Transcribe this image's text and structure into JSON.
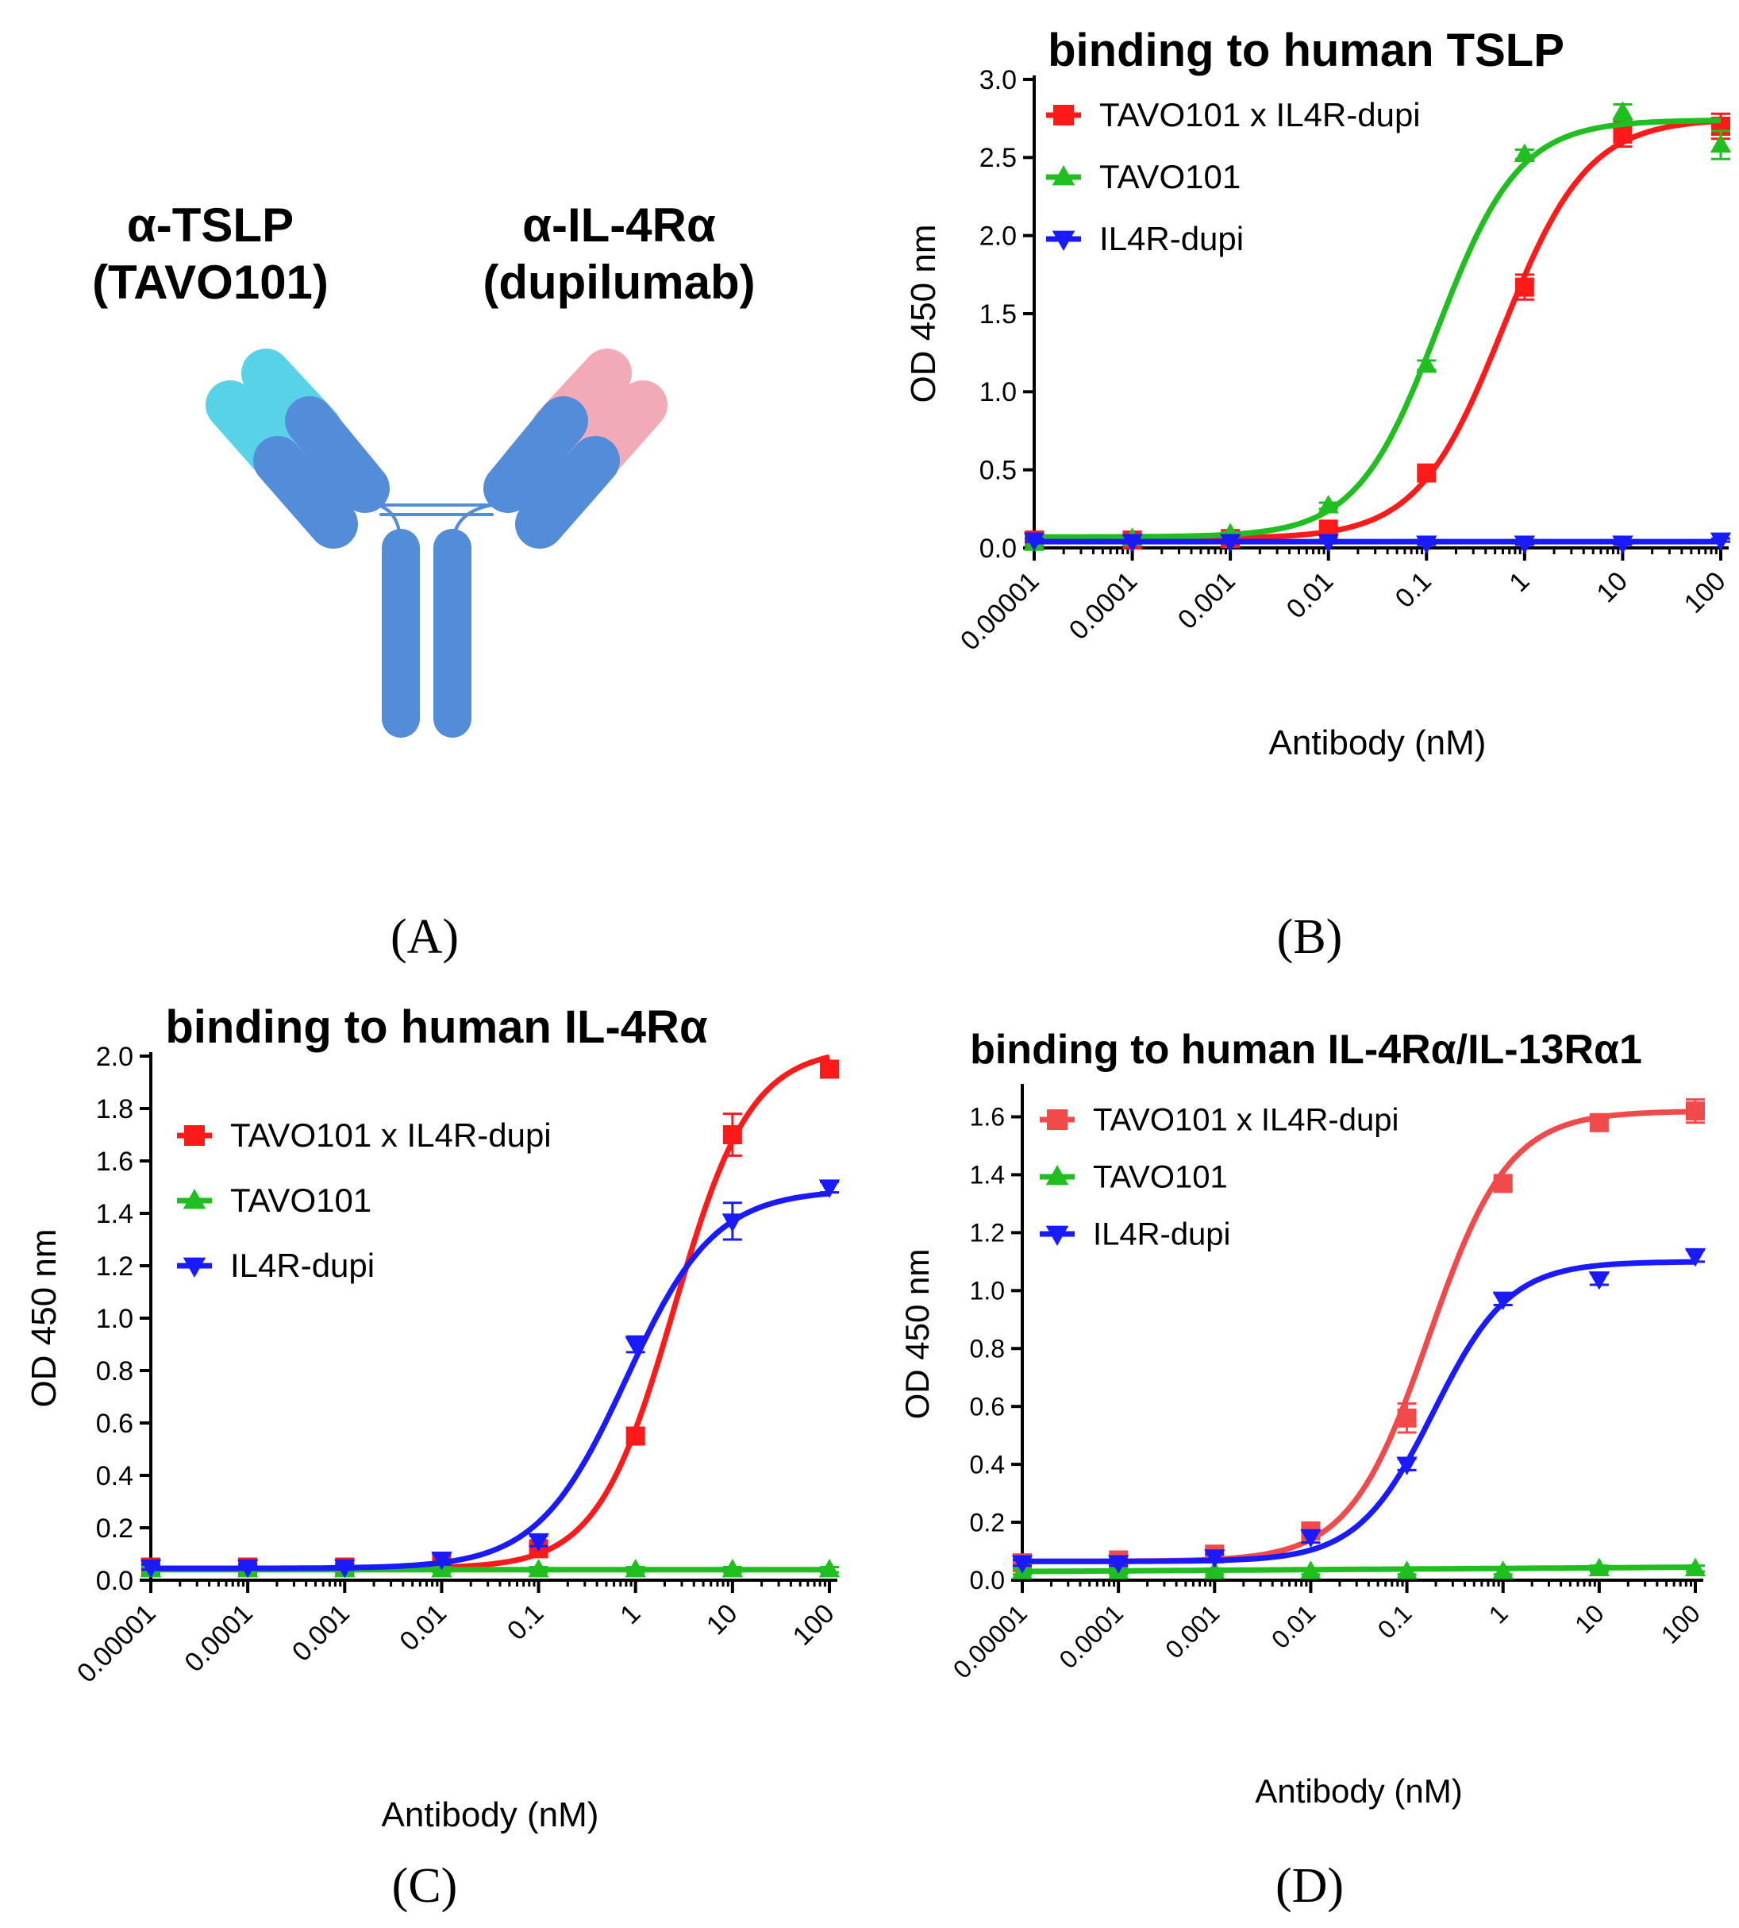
{
  "panel_letters": {
    "a": "(A)",
    "b": "(B)",
    "c": "(C)",
    "d": "(D)"
  },
  "schematic": {
    "left_label_1": "α-TSLP",
    "left_label_2": "(TAVO101)",
    "right_label_1": "α-IL-4Rα",
    "right_label_2": "(dupilumab)",
    "colors": {
      "heavy": "#4a86d6",
      "light_left": "#4fd0e6",
      "light_right": "#f2a6b3",
      "hinge": "#4a86d6"
    }
  },
  "chart_data": [
    {
      "id": "B",
      "type": "line",
      "title": "binding to human TSLP",
      "xlabel": "Antibody (nM)",
      "ylabel": "OD 450 nm",
      "xscale": "log",
      "xlim": [
        1e-05,
        100
      ],
      "ylim": [
        0,
        3.0
      ],
      "yticks": [
        0,
        0.5,
        1.0,
        1.5,
        2.0,
        2.5,
        3.0
      ],
      "ytick_labels": [
        "0.0",
        "0.5",
        "1.0",
        "1.5",
        "2.0",
        "2.5",
        "3.0"
      ],
      "xtick_labels": [
        "0.00001",
        "0.0001",
        "0.001",
        "0.01",
        "0.1",
        "1",
        "10",
        "100"
      ],
      "legend": "top-left",
      "x": [
        1e-05,
        0.0001,
        0.001,
        0.01,
        0.1,
        1,
        10,
        100
      ],
      "series": [
        {
          "name": "TAVO101 x IL4R-dupi",
          "marker": "square",
          "color": "#ff1a1a",
          "values": [
            0.05,
            0.05,
            0.06,
            0.12,
            0.48,
            1.67,
            2.65,
            2.7
          ],
          "errors": [
            0.01,
            0.01,
            0.01,
            0.02,
            0.03,
            0.08,
            0.08,
            0.08
          ],
          "fit": {
            "bottom": 0.06,
            "top": 2.75,
            "ec50": 0.6,
            "hill": 1.0
          }
        },
        {
          "name": "TAVO101",
          "marker": "triangle-up",
          "color": "#1fbf1f",
          "values": [
            0.03,
            0.06,
            0.09,
            0.27,
            1.17,
            2.52,
            2.79,
            2.58
          ],
          "errors": [
            0.01,
            0.01,
            0.01,
            0.02,
            0.03,
            0.03,
            0.05,
            0.09
          ],
          "fit": {
            "bottom": 0.07,
            "top": 2.74,
            "ec50": 0.13,
            "hill": 1.05
          }
        },
        {
          "name": "IL4R-dupi",
          "marker": "triangle-down",
          "color": "#1a1aff",
          "values": [
            0.05,
            0.04,
            0.04,
            0.04,
            0.03,
            0.03,
            0.03,
            0.05
          ],
          "errors": [
            0.01,
            0.01,
            0.01,
            0.01,
            0.01,
            0.01,
            0.01,
            0.01
          ],
          "fit": {
            "linear": [
              0.04,
              0.04
            ]
          }
        }
      ]
    },
    {
      "id": "C",
      "type": "line",
      "title": "binding to human IL-4Rα",
      "xlabel": "Antibody (nM)",
      "ylabel": "OD 450 nm",
      "xscale": "log",
      "xlim": [
        1e-05,
        100
      ],
      "ylim": [
        0,
        2.0
      ],
      "yticks": [
        0,
        0.2,
        0.4,
        0.6,
        0.8,
        1.0,
        1.2,
        1.4,
        1.6,
        1.8,
        2.0
      ],
      "ytick_labels": [
        "0.0",
        "0.2",
        "0.4",
        "0.6",
        "0.8",
        "1.0",
        "1.2",
        "1.4",
        "1.6",
        "1.8",
        "2.0"
      ],
      "xtick_labels": [
        "0.00001",
        "0.0001",
        "0.001",
        "0.01",
        "0.1",
        "1",
        "10",
        "100"
      ],
      "legend": "top-left",
      "x": [
        1e-05,
        0.0001,
        0.001,
        0.01,
        0.1,
        1,
        10,
        100
      ],
      "series": [
        {
          "name": "TAVO101 x IL4R-dupi",
          "marker": "square",
          "color": "#ff1a1a",
          "values": [
            0.05,
            0.05,
            0.05,
            0.07,
            0.12,
            0.55,
            1.7,
            1.95
          ],
          "errors": [
            0.01,
            0.01,
            0.01,
            0.01,
            0.02,
            0.03,
            0.08,
            0.03
          ],
          "fit": {
            "bottom": 0.045,
            "top": 2.03,
            "ec50": 2.5,
            "hill": 1.1
          }
        },
        {
          "name": "TAVO101",
          "marker": "triangle-up",
          "color": "#1fbf1f",
          "values": [
            0.04,
            0.04,
            0.04,
            0.04,
            0.04,
            0.04,
            0.04,
            0.04
          ],
          "errors": [
            0.01,
            0.01,
            0.01,
            0.01,
            0.01,
            0.01,
            0.01,
            0.01
          ],
          "fit": {
            "linear": [
              0.04,
              0.04
            ]
          }
        },
        {
          "name": "IL4R-dupi",
          "marker": "triangle-down",
          "color": "#1a1aff",
          "values": [
            0.05,
            0.05,
            0.05,
            0.08,
            0.15,
            0.9,
            1.37,
            1.5
          ],
          "errors": [
            0.01,
            0.01,
            0.01,
            0.02,
            0.02,
            0.03,
            0.07,
            0.02
          ],
          "fit": {
            "bottom": 0.045,
            "top": 1.49,
            "ec50": 0.8,
            "hill": 0.95
          }
        }
      ]
    },
    {
      "id": "D",
      "type": "line",
      "title": "binding to human IL-4Rα/IL-13Rα1",
      "xlabel": "Antibody (nM)",
      "ylabel": "OD 450 nm",
      "xscale": "log",
      "xlim": [
        1e-05,
        100
      ],
      "ylim": [
        0,
        1.7
      ],
      "yticks": [
        0,
        0.2,
        0.4,
        0.6,
        0.8,
        1.0,
        1.2,
        1.4,
        1.6
      ],
      "ytick_labels": [
        "0.0",
        "0.2",
        "0.4",
        "0.6",
        "0.8",
        "1.0",
        "1.2",
        "1.4",
        "1.6"
      ],
      "xtick_labels": [
        "0.00001",
        "0.0001",
        "0.001",
        "0.01",
        "0.1",
        "1",
        "10",
        "100"
      ],
      "legend": "top-left",
      "x": [
        1e-05,
        0.0001,
        0.001,
        0.01,
        0.1,
        1,
        10,
        100
      ],
      "series": [
        {
          "name": "TAVO101 x IL4R-dupi",
          "marker": "square",
          "color": "#f24a4a",
          "values": [
            0.06,
            0.07,
            0.09,
            0.17,
            0.56,
            1.37,
            1.58,
            1.62
          ],
          "errors": [
            0.01,
            0.01,
            0.01,
            0.02,
            0.05,
            0.02,
            0.02,
            0.04
          ],
          "fit": {
            "bottom": 0.065,
            "top": 1.62,
            "ec50": 0.17,
            "hill": 1.05
          }
        },
        {
          "name": "TAVO101",
          "marker": "triangle-up",
          "color": "#1fbf1f",
          "values": [
            0.03,
            0.03,
            0.03,
            0.03,
            0.03,
            0.03,
            0.04,
            0.04
          ],
          "errors": [
            0.01,
            0.01,
            0.01,
            0.01,
            0.01,
            0.01,
            0.01,
            0.01
          ],
          "fit": {
            "linear": [
              0.03,
              0.045
            ]
          }
        },
        {
          "name": "IL4R-dupi",
          "marker": "triangle-down",
          "color": "#1a1aff",
          "values": [
            0.06,
            0.06,
            0.08,
            0.15,
            0.4,
            0.97,
            1.04,
            1.12
          ],
          "errors": [
            0.01,
            0.01,
            0.01,
            0.02,
            0.02,
            0.02,
            0.02,
            0.02
          ],
          "fit": {
            "bottom": 0.065,
            "top": 1.1,
            "ec50": 0.19,
            "hill": 1.1
          }
        }
      ]
    }
  ]
}
